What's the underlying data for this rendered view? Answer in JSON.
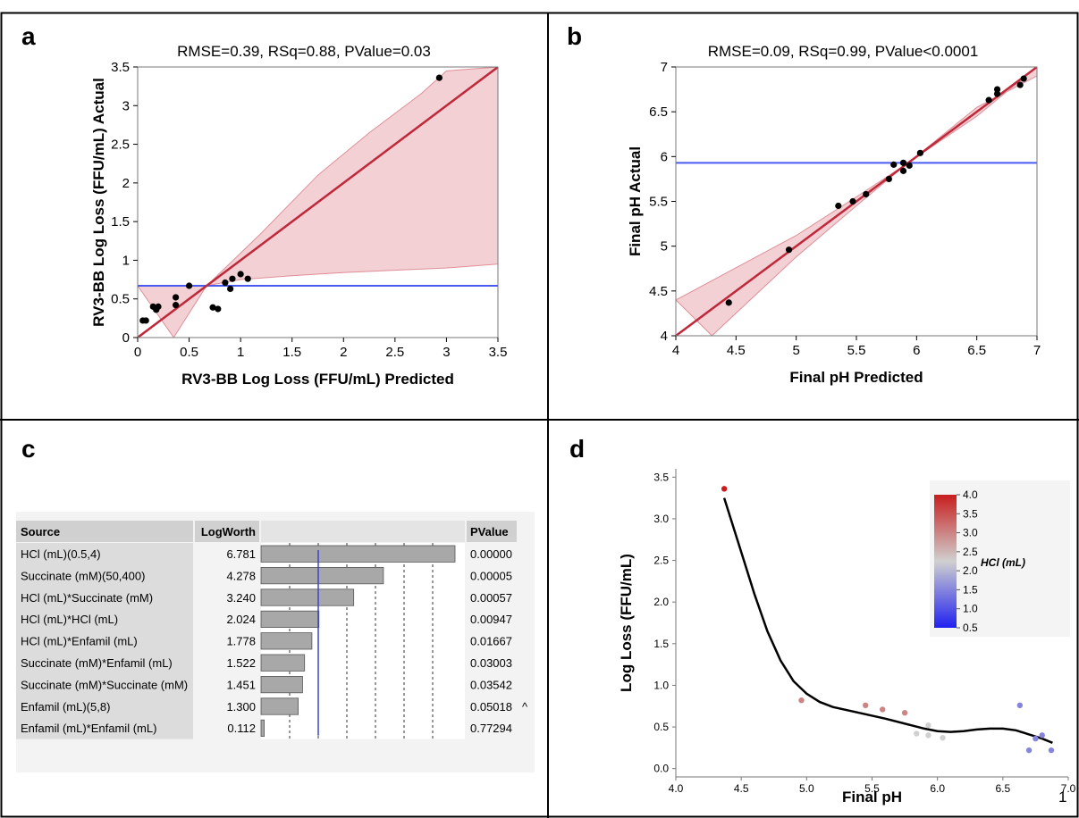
{
  "panels": {
    "a": {
      "label": "a",
      "title": "RMSE=0.39,  RSq=0.88, PValue=0.03"
    },
    "b": {
      "label": "b",
      "title": "RMSE=0.09,  RSq=0.99, PValue<0.0001"
    },
    "c": {
      "label": "c"
    },
    "d": {
      "label": "d",
      "corner_text": "1"
    }
  },
  "chart_data": [
    {
      "id": "a",
      "type": "scatter",
      "title": "RMSE=0.39,  RSq=0.88, PValue=0.03",
      "xlabel": "RV3-BB Log Loss (FFU/mL) Predicted",
      "ylabel": "RV3-BB Log Loss (FFU/mL) Actual",
      "xlim": [
        0,
        3.5
      ],
      "ylim": [
        0,
        3.5
      ],
      "xticks": [
        "0",
        "0.5",
        "1",
        "1.5",
        "2",
        "2.5",
        "3",
        "3.5"
      ],
      "yticks": [
        "0",
        "0.5",
        "1",
        "1.5",
        "2",
        "2.5",
        "3",
        "3.5"
      ],
      "points": [
        [
          0.05,
          0.22
        ],
        [
          0.08,
          0.22
        ],
        [
          0.15,
          0.4
        ],
        [
          0.18,
          0.36
        ],
        [
          0.2,
          0.4
        ],
        [
          0.37,
          0.52
        ],
        [
          0.37,
          0.42
        ],
        [
          0.5,
          0.67
        ],
        [
          0.73,
          0.39
        ],
        [
          0.78,
          0.37
        ],
        [
          0.85,
          0.71
        ],
        [
          0.9,
          0.63
        ],
        [
          0.92,
          0.76
        ],
        [
          1.0,
          0.82
        ],
        [
          1.07,
          0.76
        ],
        [
          2.93,
          3.36
        ]
      ],
      "fit_line": [
        [
          0,
          0
        ],
        [
          3.5,
          3.5
        ]
      ],
      "mean_line": 0.67,
      "band_upper": [
        [
          0,
          0.67
        ],
        [
          0.67,
          0.67
        ],
        [
          1.2,
          1.35
        ],
        [
          1.75,
          2.1
        ],
        [
          2.25,
          2.65
        ],
        [
          2.75,
          3.15
        ],
        [
          3.0,
          3.45
        ],
        [
          3.5,
          3.5
        ]
      ],
      "band_lower": [
        [
          0.35,
          0
        ],
        [
          0.67,
          0.67
        ],
        [
          1.0,
          0.75
        ],
        [
          1.5,
          0.8
        ],
        [
          2.0,
          0.84
        ],
        [
          2.5,
          0.87
        ],
        [
          3.0,
          0.9
        ],
        [
          3.5,
          0.95
        ]
      ],
      "colors": {
        "points": "#000000",
        "fit": "#c0283a",
        "band": "#f0c8cc",
        "mean": "#4a5af0"
      }
    },
    {
      "id": "b",
      "type": "scatter",
      "title": "RMSE=0.09,  RSq=0.99, PValue<0.0001",
      "xlabel": "Final pH Predicted",
      "ylabel": "Final pH Actual",
      "xlim": [
        4,
        7
      ],
      "ylim": [
        4,
        7
      ],
      "xticks": [
        "4",
        "4.5",
        "5",
        "5.5",
        "6",
        "6.5",
        "7"
      ],
      "yticks": [
        "4",
        "4.5",
        "5",
        "5.5",
        "6",
        "6.5",
        "7"
      ],
      "points": [
        [
          4.44,
          4.37
        ],
        [
          4.94,
          4.96
        ],
        [
          5.35,
          5.45
        ],
        [
          5.47,
          5.5
        ],
        [
          5.58,
          5.58
        ],
        [
          5.77,
          5.75
        ],
        [
          5.81,
          5.91
        ],
        [
          5.89,
          5.84
        ],
        [
          5.89,
          5.93
        ],
        [
          5.94,
          5.9
        ],
        [
          6.03,
          6.04
        ],
        [
          6.6,
          6.63
        ],
        [
          6.67,
          6.7
        ],
        [
          6.67,
          6.75
        ],
        [
          6.86,
          6.8
        ],
        [
          6.89,
          6.87
        ]
      ],
      "fit_line": [
        [
          4,
          4
        ],
        [
          7,
          7
        ]
      ],
      "mean_line": 5.93,
      "band_upper": [
        [
          4,
          4.4
        ],
        [
          5,
          5.12
        ],
        [
          5.5,
          5.55
        ],
        [
          5.93,
          5.93
        ],
        [
          6.5,
          6.45
        ],
        [
          7,
          7.0
        ]
      ],
      "band_lower": [
        [
          4.3,
          4
        ],
        [
          5,
          4.88
        ],
        [
          5.5,
          5.45
        ],
        [
          5.93,
          5.93
        ],
        [
          6.5,
          6.55
        ],
        [
          7,
          6.9
        ]
      ],
      "colors": {
        "points": "#000000",
        "fit": "#c0283a",
        "band": "#f0c8cc",
        "mean": "#4a5af0"
      }
    },
    {
      "id": "c",
      "type": "table",
      "headers": [
        "Source",
        "LogWorth",
        "",
        "PValue"
      ],
      "rows": [
        {
          "source": "HCl (mL)(0.5,4)",
          "logworth": "6.781",
          "value": 6.781,
          "pvalue": "0.00000",
          "flag": ""
        },
        {
          "source": "Succinate (mM)(50,400)",
          "logworth": "4.278",
          "value": 4.278,
          "pvalue": "0.00005",
          "flag": ""
        },
        {
          "source": "HCl (mL)*Succinate (mM)",
          "logworth": "3.240",
          "value": 3.24,
          "pvalue": "0.00057",
          "flag": ""
        },
        {
          "source": "HCl (mL)*HCl (mL)",
          "logworth": "2.024",
          "value": 2.024,
          "pvalue": "0.00947",
          "flag": ""
        },
        {
          "source": "HCl (mL)*Enfamil (mL)",
          "logworth": "1.778",
          "value": 1.778,
          "pvalue": "0.01667",
          "flag": ""
        },
        {
          "source": "Succinate (mM)*Enfamil (mL)",
          "logworth": "1.522",
          "value": 1.522,
          "pvalue": "0.03003",
          "flag": ""
        },
        {
          "source": "Succinate (mM)*Succinate (mM)",
          "logworth": "1.451",
          "value": 1.451,
          "pvalue": "0.03542",
          "flag": ""
        },
        {
          "source": "Enfamil (mL)(5,8)",
          "logworth": "1.300",
          "value": 1.3,
          "pvalue": "0.05018",
          "flag": "^"
        },
        {
          "source": "Enfamil (mL)*Enfamil (mL)",
          "logworth": "0.112",
          "value": 0.112,
          "pvalue": "0.77294",
          "flag": ""
        }
      ],
      "bar_max": 7,
      "ref_value": 2,
      "colors": {
        "bar": "#a8a8a8",
        "ref": "#3a46d0",
        "label_bg": "#dcdcdc"
      }
    },
    {
      "id": "d",
      "type": "scatter",
      "xlabel": "Final pH",
      "ylabel": "Log Loss (FFU/mL)",
      "xlim": [
        4,
        7
      ],
      "ylim": [
        -0.1,
        3.6
      ],
      "xticks": [
        "4.0",
        "4.5",
        "5.0",
        "5.5",
        "6.0",
        "6.5",
        "7.0"
      ],
      "yticks": [
        "0.0",
        "0.5",
        "1.0",
        "1.5",
        "2.0",
        "2.5",
        "3.0",
        "3.5"
      ],
      "points": [
        {
          "x": 4.37,
          "y": 3.36,
          "hcl": 4.0
        },
        {
          "x": 4.96,
          "y": 0.82,
          "hcl": 3.0
        },
        {
          "x": 5.45,
          "y": 0.76,
          "hcl": 3.0
        },
        {
          "x": 5.58,
          "y": 0.71,
          "hcl": 3.0
        },
        {
          "x": 5.75,
          "y": 0.67,
          "hcl": 3.0
        },
        {
          "x": 5.84,
          "y": 0.42,
          "hcl": 2.25
        },
        {
          "x": 5.93,
          "y": 0.4,
          "hcl": 2.25
        },
        {
          "x": 5.93,
          "y": 0.52,
          "hcl": 2.25
        },
        {
          "x": 6.04,
          "y": 0.37,
          "hcl": 2.25
        },
        {
          "x": 6.63,
          "y": 0.76,
          "hcl": 1.5
        },
        {
          "x": 6.7,
          "y": 0.22,
          "hcl": 1.5
        },
        {
          "x": 6.75,
          "y": 0.36,
          "hcl": 1.5
        },
        {
          "x": 6.8,
          "y": 0.4,
          "hcl": 1.5
        },
        {
          "x": 6.87,
          "y": 0.22,
          "hcl": 1.5
        }
      ],
      "smooth": [
        [
          4.37,
          3.25
        ],
        [
          4.5,
          2.6
        ],
        [
          4.6,
          2.1
        ],
        [
          4.7,
          1.65
        ],
        [
          4.8,
          1.3
        ],
        [
          4.9,
          1.05
        ],
        [
          5.0,
          0.9
        ],
        [
          5.1,
          0.8
        ],
        [
          5.2,
          0.74
        ],
        [
          5.4,
          0.67
        ],
        [
          5.6,
          0.6
        ],
        [
          5.8,
          0.52
        ],
        [
          5.9,
          0.48
        ],
        [
          6.0,
          0.45
        ],
        [
          6.1,
          0.44
        ],
        [
          6.2,
          0.45
        ],
        [
          6.3,
          0.47
        ],
        [
          6.4,
          0.48
        ],
        [
          6.5,
          0.48
        ],
        [
          6.6,
          0.46
        ],
        [
          6.7,
          0.41
        ],
        [
          6.8,
          0.36
        ],
        [
          6.88,
          0.31
        ]
      ],
      "colorbar": {
        "title": "HCl (mL)",
        "min": 0.5,
        "max": 4.0,
        "ticks": [
          "4.0",
          "3.5",
          "3.0",
          "2.5",
          "2.0",
          "1.5",
          "1.0",
          "0.5"
        ],
        "colors": [
          "#2020f0",
          "#d0d0d0",
          "#c81e1e"
        ]
      }
    }
  ]
}
